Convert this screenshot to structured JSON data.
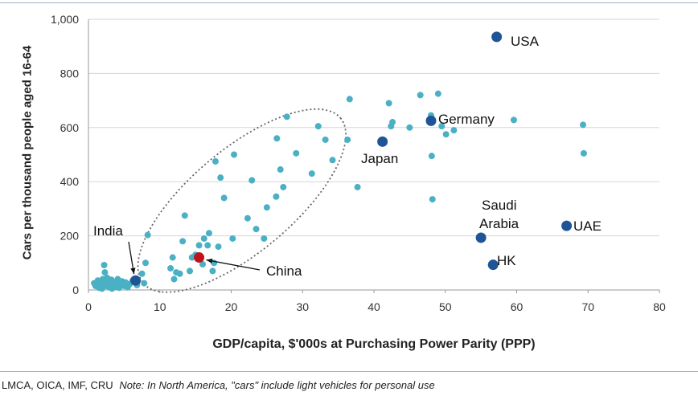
{
  "chart_data": {
    "type": "scatter",
    "xlabel": "GDP/capita, $'000s at Purchasing Power Parity (PPP)",
    "ylabel": "Cars per thousand people aged 16-64",
    "xlim": [
      0,
      80
    ],
    "ylim": [
      0,
      1000
    ],
    "x_ticks": [
      "0",
      "10",
      "20",
      "30",
      "40",
      "50",
      "60",
      "70",
      "80"
    ],
    "y_ticks": [
      "0",
      "200",
      "400",
      "600",
      "800",
      "1,000"
    ],
    "grid": "horizontal",
    "colors": {
      "small": "#4ab0c4",
      "highlight": "#1f5596",
      "china": "#c0141c",
      "ellipse": "#666666"
    },
    "points": [
      [
        0.8,
        25
      ],
      [
        1.0,
        15
      ],
      [
        1.3,
        35
      ],
      [
        1.5,
        8
      ],
      [
        1.7,
        20
      ],
      [
        1.9,
        5
      ],
      [
        2.0,
        40
      ],
      [
        2.1,
        28
      ],
      [
        2.2,
        92
      ],
      [
        2.3,
        65
      ],
      [
        2.4,
        15
      ],
      [
        2.6,
        45
      ],
      [
        2.7,
        30
      ],
      [
        2.9,
        10
      ],
      [
        3.0,
        22
      ],
      [
        3.2,
        38
      ],
      [
        3.3,
        5
      ],
      [
        3.5,
        18
      ],
      [
        3.6,
        30
      ],
      [
        3.8,
        12
      ],
      [
        4.0,
        25
      ],
      [
        4.1,
        40
      ],
      [
        4.3,
        8
      ],
      [
        4.5,
        20
      ],
      [
        4.7,
        32
      ],
      [
        5.0,
        15
      ],
      [
        5.2,
        28
      ],
      [
        5.5,
        10
      ],
      [
        5.8,
        22
      ],
      [
        6.2,
        35
      ],
      [
        6.8,
        18
      ],
      [
        7.5,
        60
      ],
      [
        7.8,
        25
      ],
      [
        8.0,
        100
      ],
      [
        8.3,
        203
      ],
      [
        11.5,
        80
      ],
      [
        11.8,
        120
      ],
      [
        12.0,
        40
      ],
      [
        12.3,
        65
      ],
      [
        12.8,
        60
      ],
      [
        13.2,
        180
      ],
      [
        13.5,
        275
      ],
      [
        14.2,
        70
      ],
      [
        14.5,
        120
      ],
      [
        15.0,
        130
      ],
      [
        15.5,
        165
      ],
      [
        16.0,
        95
      ],
      [
        16.2,
        190
      ],
      [
        16.7,
        165
      ],
      [
        16.9,
        210
      ],
      [
        17.4,
        70
      ],
      [
        17.6,
        100
      ],
      [
        17.8,
        475
      ],
      [
        18.2,
        160
      ],
      [
        18.5,
        415
      ],
      [
        19.0,
        340
      ],
      [
        20.2,
        190
      ],
      [
        20.4,
        500
      ],
      [
        22.3,
        265
      ],
      [
        22.9,
        405
      ],
      [
        23.5,
        225
      ],
      [
        24.6,
        190
      ],
      [
        25.0,
        305
      ],
      [
        26.3,
        345
      ],
      [
        26.4,
        560
      ],
      [
        26.9,
        445
      ],
      [
        27.3,
        380
      ],
      [
        27.8,
        640
      ],
      [
        29.1,
        505
      ],
      [
        31.3,
        430
      ],
      [
        32.2,
        605
      ],
      [
        33.2,
        555
      ],
      [
        34.2,
        480
      ],
      [
        36.3,
        555
      ],
      [
        36.6,
        705
      ],
      [
        37.7,
        380
      ],
      [
        42.1,
        690
      ],
      [
        42.4,
        605
      ],
      [
        42.6,
        620
      ],
      [
        45.0,
        600
      ],
      [
        46.5,
        720
      ],
      [
        48.0,
        645
      ],
      [
        48.1,
        495
      ],
      [
        48.2,
        335
      ],
      [
        49.0,
        725
      ],
      [
        49.5,
        605
      ],
      [
        50.1,
        575
      ],
      [
        51.2,
        590
      ],
      [
        59.6,
        628
      ],
      [
        69.3,
        610
      ],
      [
        69.4,
        505
      ]
    ],
    "highlights": [
      {
        "label": "USA",
        "x": 57.2,
        "y": 935
      },
      {
        "label": "Germany",
        "x": 48.0,
        "y": 625
      },
      {
        "label": "Japan",
        "x": 41.2,
        "y": 548
      },
      {
        "label": "Saudi Arabia",
        "x": 55.0,
        "y": 193
      },
      {
        "label": "UAE",
        "x": 67.0,
        "y": 237
      },
      {
        "label": "HK",
        "x": 56.7,
        "y": 93
      },
      {
        "label": "India",
        "x": 6.6,
        "y": 35
      }
    ],
    "china": {
      "label": "China",
      "x": 15.5,
      "y": 120
    },
    "annotations": {
      "usa": "USA",
      "germany": "Germany",
      "japan": "Japan",
      "saudi_line1": "Saudi",
      "saudi_line2": "Arabia",
      "uae": "UAE",
      "hk": "HK",
      "india": "India",
      "china": "China"
    }
  },
  "footer": {
    "source": "LMCA, OICA, IMF, CRU",
    "note": "Note: In North America, \"cars\" include light vehicles for personal use"
  }
}
